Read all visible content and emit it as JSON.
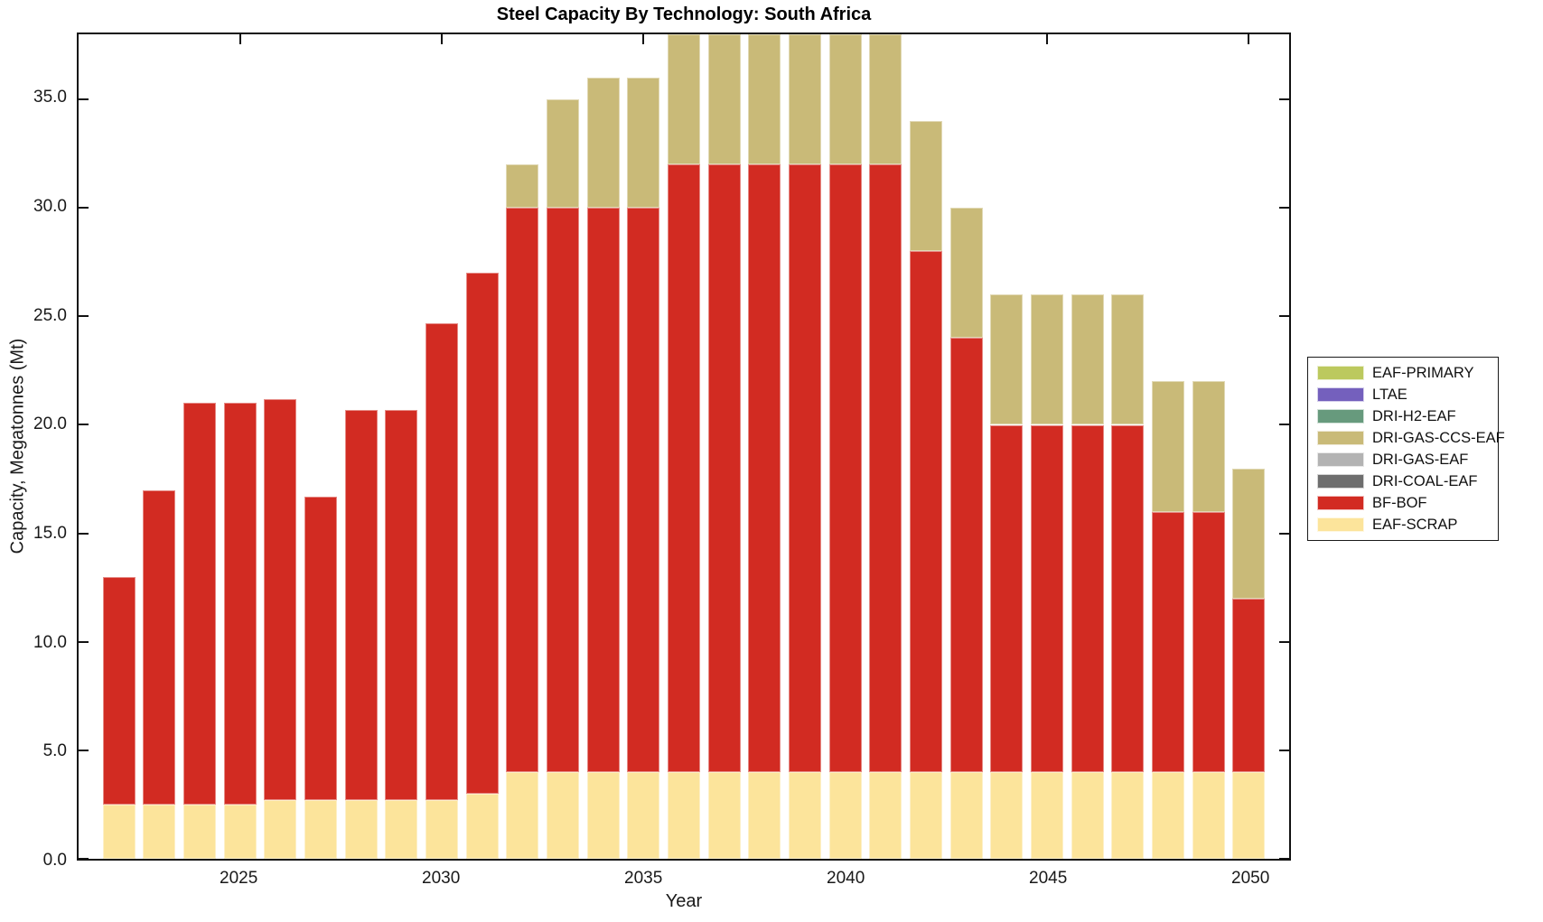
{
  "chart_data": {
    "type": "bar",
    "stacked": true,
    "title": "Steel Capacity By Technology: South Africa",
    "xlabel": "Year",
    "ylabel": "Capacity, Megatonnes (Mt)",
    "xlim": [
      2021,
      2051
    ],
    "ylim": [
      0,
      38
    ],
    "grid": false,
    "bar_width_years": 0.8,
    "legend_position": "outside-right",
    "x_ticks": [
      2025,
      2030,
      2035,
      2040,
      2045,
      2050
    ],
    "y_ticks": [
      0,
      5,
      10,
      15,
      20,
      25,
      30,
      35
    ],
    "y_tick_labels": [
      "0.0",
      "5.0",
      "10.0",
      "15.0",
      "20.0",
      "25.0",
      "30.0",
      "35.0"
    ],
    "x": [
      2022,
      2023,
      2024,
      2025,
      2026,
      2027,
      2028,
      2029,
      2030,
      2031,
      2032,
      2033,
      2034,
      2035,
      2036,
      2037,
      2038,
      2039,
      2040,
      2041,
      2042,
      2043,
      2044,
      2045,
      2046,
      2047,
      2048,
      2049,
      2050
    ],
    "series": [
      {
        "name": "EAF-SCRAP",
        "color": "#fce49b",
        "values": [
          2.5,
          2.5,
          2.5,
          2.5,
          2.7,
          2.7,
          2.7,
          2.7,
          2.7,
          3.0,
          4.0,
          4.0,
          4.0,
          4.0,
          4.0,
          4.0,
          4.0,
          4.0,
          4.0,
          4.0,
          4.0,
          4.0,
          4.0,
          4.0,
          4.0,
          4.0,
          4.0,
          4.0,
          4.0
        ]
      },
      {
        "name": "BF-BOF",
        "color": "#d22b22",
        "values": [
          10.5,
          14.5,
          18.5,
          18.5,
          18.5,
          14.0,
          18.0,
          18.0,
          22.0,
          24.0,
          26.0,
          26.0,
          26.0,
          26.0,
          28.0,
          28.0,
          28.0,
          28.0,
          28.0,
          28.0,
          24.0,
          20.0,
          16.0,
          16.0,
          16.0,
          16.0,
          12.0,
          12.0,
          8.0
        ]
      },
      {
        "name": "DRI-COAL-EAF",
        "color": "#6e6e6e",
        "values": [
          0,
          0,
          0,
          0,
          0,
          0,
          0,
          0,
          0,
          0,
          0,
          0,
          0,
          0,
          0,
          0,
          0,
          0,
          0,
          0,
          0,
          0,
          0,
          0,
          0,
          0,
          0,
          0,
          0
        ]
      },
      {
        "name": "DRI-GAS-EAF",
        "color": "#b3b3b3",
        "values": [
          0,
          0,
          0,
          0,
          0,
          0,
          0,
          0,
          0,
          0,
          0,
          0,
          0,
          0,
          0,
          0,
          0,
          0,
          0,
          0,
          0,
          0,
          0,
          0,
          0,
          0,
          0,
          0,
          0
        ]
      },
      {
        "name": "DRI-GAS-CCS-EAF",
        "color": "#c9ba78",
        "values": [
          0,
          0,
          0,
          0,
          0,
          0,
          0,
          0,
          0,
          0,
          2.0,
          5.0,
          6.0,
          6.0,
          6.0,
          6.0,
          6.0,
          6.0,
          6.0,
          6.0,
          6.0,
          6.0,
          6.0,
          6.0,
          6.0,
          6.0,
          6.0,
          6.0,
          6.0
        ]
      },
      {
        "name": "DRI-H2-EAF",
        "color": "#679a7d",
        "values": [
          0,
          0,
          0,
          0,
          0,
          0,
          0,
          0,
          0,
          0,
          0,
          0,
          0,
          0,
          0,
          0,
          0,
          0,
          0,
          0,
          0,
          0,
          0,
          0,
          0,
          0,
          0,
          0,
          0
        ]
      },
      {
        "name": "LTAE",
        "color": "#7460bd",
        "values": [
          0,
          0,
          0,
          0,
          0,
          0,
          0,
          0,
          0,
          0,
          0,
          0,
          0,
          0,
          0,
          0,
          0,
          0,
          0,
          0,
          0,
          0,
          0,
          0,
          0,
          0,
          0,
          0,
          0
        ]
      },
      {
        "name": "EAF-PRIMARY",
        "color": "#bcc95e",
        "values": [
          0,
          0,
          0,
          0,
          0,
          0,
          0,
          0,
          0,
          0,
          0,
          0,
          0,
          0,
          0,
          0,
          0,
          0,
          0,
          0,
          0,
          0,
          0,
          0,
          0,
          0,
          0,
          0,
          0
        ]
      }
    ],
    "legend": [
      "EAF-PRIMARY",
      "LTAE",
      "DRI-H2-EAF",
      "DRI-GAS-CCS-EAF",
      "DRI-GAS-EAF",
      "DRI-COAL-EAF",
      "BF-BOF",
      "EAF-SCRAP"
    ]
  }
}
